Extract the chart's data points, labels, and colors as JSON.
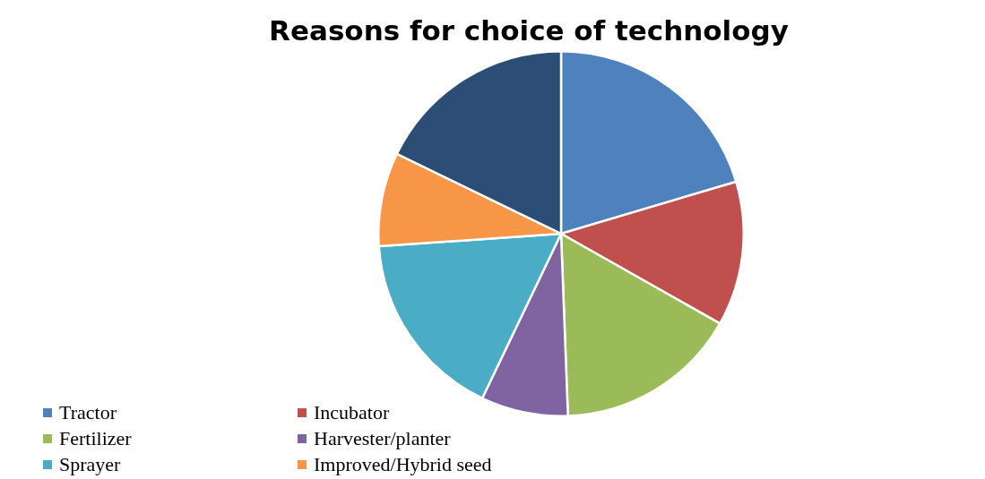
{
  "chart_data": {
    "type": "pie",
    "title": "Reasons for choice of technology",
    "categories": [
      "Tractor",
      "Incubator",
      "Fertilizer",
      "Harvester/planter",
      "Sprayer",
      "Improved/Hybrid seed",
      null
    ],
    "values": [
      20.4,
      12.8,
      16.2,
      7.7,
      16.8,
      8.3,
      17.8
    ],
    "colors": [
      "#4f81bd",
      "#c0504d",
      "#9bbb59",
      "#8064a2",
      "#4bacc6",
      "#f79646",
      "#2c4d75"
    ],
    "legend": "bottom left"
  }
}
